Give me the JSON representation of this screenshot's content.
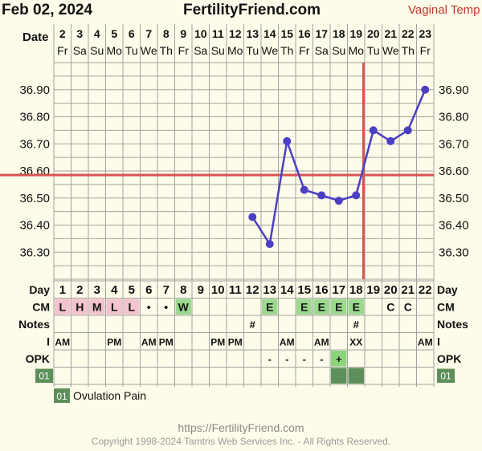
{
  "header": {
    "date": "Feb 02, 2024",
    "site": "FertilityFriend.com",
    "chart_type_label": "Vaginal Temp"
  },
  "labels": {
    "date_row": "Date",
    "day_row": "Day",
    "cm_row": "CM",
    "notes_row": "Notes",
    "intercourse_row": "I",
    "opk_row": "OPK",
    "symptom_code": "01",
    "legend_text": "Ovulation Pain"
  },
  "chart_data": {
    "type": "line",
    "dates": [
      "2",
      "3",
      "4",
      "5",
      "6",
      "7",
      "8",
      "9",
      "10",
      "11",
      "12",
      "13",
      "14",
      "15",
      "16",
      "17",
      "18",
      "19",
      "20",
      "21",
      "22",
      "23"
    ],
    "weekdays": [
      "Fr",
      "Sa",
      "Su",
      "Mo",
      "Tu",
      "We",
      "Th",
      "Fr",
      "Sa",
      "Su",
      "Mo",
      "Tu",
      "We",
      "Th",
      "Fr",
      "Sa",
      "Su",
      "Mo",
      "Tu",
      "We",
      "Th",
      "Fr"
    ],
    "cycle_days": [
      "1",
      "2",
      "3",
      "4",
      "5",
      "6",
      "7",
      "8",
      "9",
      "10",
      "11",
      "12",
      "13",
      "14",
      "15",
      "16",
      "17",
      "18",
      "19",
      "20",
      "21",
      "22"
    ],
    "y_ticks": [
      "36.90",
      "36.80",
      "36.70",
      "36.60",
      "36.50",
      "36.40",
      "36.30"
    ],
    "ylim": [
      36.2,
      37.0
    ],
    "temperatures": [
      null,
      null,
      null,
      null,
      null,
      null,
      null,
      null,
      null,
      null,
      null,
      36.43,
      36.33,
      36.71,
      36.53,
      36.51,
      36.49,
      36.51,
      36.75,
      36.71,
      36.75,
      36.9
    ],
    "coverline": 36.585,
    "ovulation_day": 18,
    "cm": [
      "L",
      "H",
      "M",
      "L",
      "L",
      "•",
      "•",
      "W",
      "",
      "",
      "",
      "",
      "E",
      "",
      "E",
      "E",
      "E",
      "E",
      "",
      "C",
      "C",
      ""
    ],
    "notes": [
      "",
      "",
      "",
      "",
      "",
      "",
      "",
      "",
      "",
      "",
      "",
      "#",
      "",
      "",
      "",
      "",
      "",
      "#",
      "",
      "",
      "",
      ""
    ],
    "intercourse": [
      "AM",
      "",
      "",
      "PM",
      "",
      "AM",
      "PM",
      "",
      "",
      "PM",
      "PM",
      "",
      "",
      "AM",
      "",
      "AM",
      "",
      "XX",
      "",
      "",
      "",
      "AM"
    ],
    "opk": [
      "",
      "",
      "",
      "",
      "",
      "",
      "",
      "",
      "",
      "",
      "",
      "",
      "-",
      "-",
      "-",
      "-",
      "+",
      "",
      "",
      "",
      "",
      ""
    ],
    "ovulation_pain": [
      false,
      false,
      false,
      false,
      false,
      false,
      false,
      false,
      false,
      false,
      false,
      false,
      false,
      false,
      false,
      false,
      true,
      true,
      false,
      false,
      false,
      false
    ],
    "colors": {
      "line": "#4b3fc4",
      "coverline": "#d9534f",
      "grid": "#a3a3a3",
      "cm_menstrual": "#f3c3cf",
      "cm_fertile": "#9bd98e",
      "opk_positive": "#8bd47a",
      "symptom": "#5d8f5b",
      "cell_bg": "#ffffff"
    }
  },
  "footer": {
    "url": "https://FertilityFriend.com",
    "copyright": "Copyright 1998-2024 Tamtris Web Services Inc. - All Rights Reserved."
  }
}
